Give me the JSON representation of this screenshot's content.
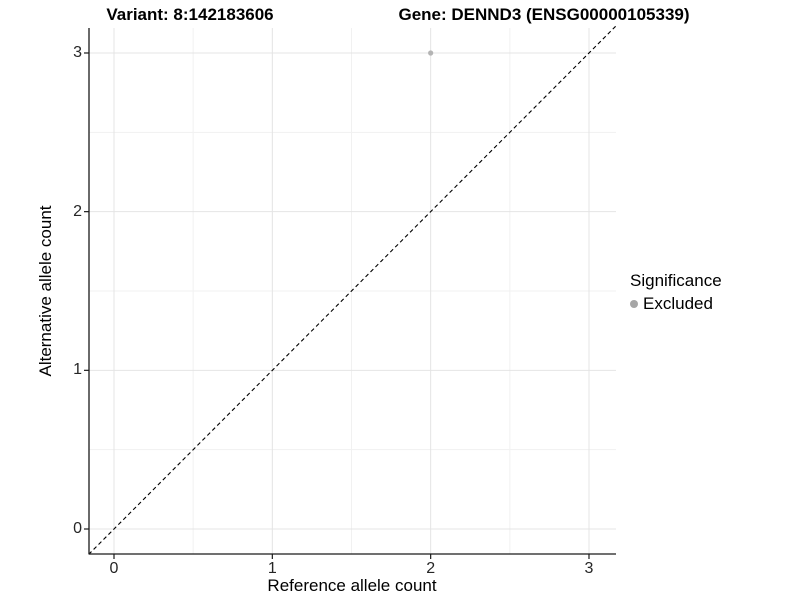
{
  "chart_data": {
    "type": "scatter",
    "title_left": "Variant: 8:142183606",
    "title_right": "Gene: DENND3 (ENSG00000105339)",
    "xlabel": "Reference allele count",
    "ylabel": "Alternative allele count",
    "xlim": [
      -0.16,
      3.17
    ],
    "ylim": [
      -0.16,
      3.17
    ],
    "x_ticks": [
      0,
      1,
      2,
      3
    ],
    "y_ticks": [
      0,
      1,
      2,
      3
    ],
    "x_minor_ticks": [
      0.5,
      1.5,
      2.5
    ],
    "y_minor_ticks": [
      0.5,
      1.5,
      2.5
    ],
    "grid": true,
    "identity_line": {
      "style": "dashed",
      "color": "#000000",
      "from": [
        -0.16,
        -0.16
      ],
      "to": [
        3.17,
        3.17
      ]
    },
    "series": [
      {
        "name": "Excluded",
        "color": "#b4b4b4",
        "point_radius": 2.6,
        "points": [
          [
            2,
            3
          ]
        ]
      }
    ],
    "legend": {
      "title": "Significance",
      "position": "right",
      "items": [
        {
          "label": "Excluded",
          "color": "#a6a6a6"
        }
      ]
    },
    "colors": {
      "background": "#ffffff",
      "grid_major": "#e4e4e4",
      "grid_minor": "#f1f1f1",
      "axis": "#1a1a1a",
      "tick_text": "#262626"
    }
  }
}
